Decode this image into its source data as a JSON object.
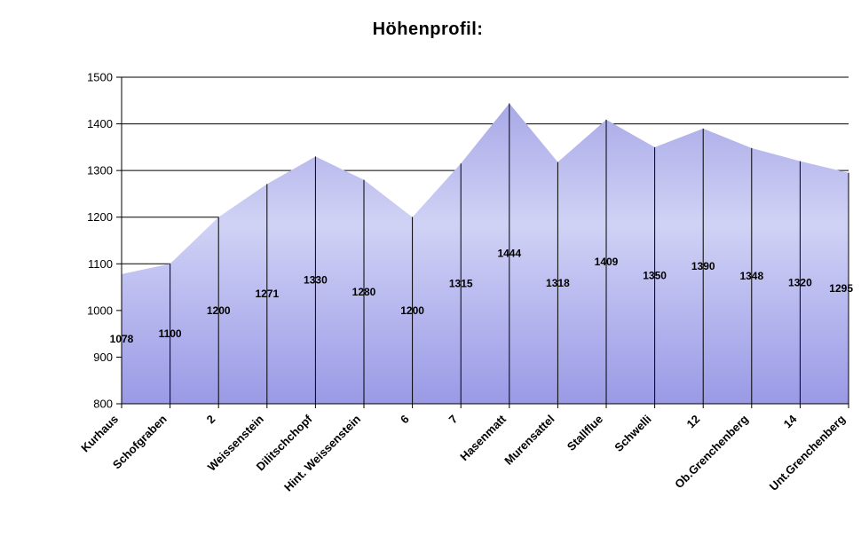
{
  "chart_data": {
    "type": "area",
    "title": "Höhenprofil:",
    "categories": [
      "Kurhaus",
      "Schofgraben",
      "2",
      "Weissenstein",
      "Dilitschchopf",
      "Hint. Weissenstein",
      "6",
      "7",
      "Hasenmatt",
      "Murensattel",
      "Stallflue",
      "Schwelli",
      "12",
      "Ob.Grenchenberg",
      "14",
      "Unt.Grenchenberg"
    ],
    "values": [
      1078,
      1100,
      1200,
      1271,
      1330,
      1280,
      1200,
      1315,
      1444,
      1318,
      1409,
      1350,
      1390,
      1348,
      1320,
      1295
    ],
    "ylabel": "",
    "xlabel": "",
    "ylim": [
      800,
      1500
    ],
    "ytick_step": 100,
    "ytick_labels": [
      "800",
      "900",
      "1000",
      "1100",
      "1200",
      "1300",
      "1400",
      "1500"
    ],
    "grid": true,
    "gridlines_behind_series": true,
    "drop_lines": true,
    "data_labels_position": "center",
    "legend": "none",
    "category_label_rotation_deg": 45,
    "colors": {
      "fill_gradient_top": "#a0a0e4",
      "fill_gradient_middle": "#d0d2f5",
      "fill_gradient_bottom": "#9a9ae6",
      "axis_line": "#000000",
      "gridline": "#000000",
      "drop_line": "#000000",
      "text": "#000000",
      "background": "#ffffff"
    }
  }
}
